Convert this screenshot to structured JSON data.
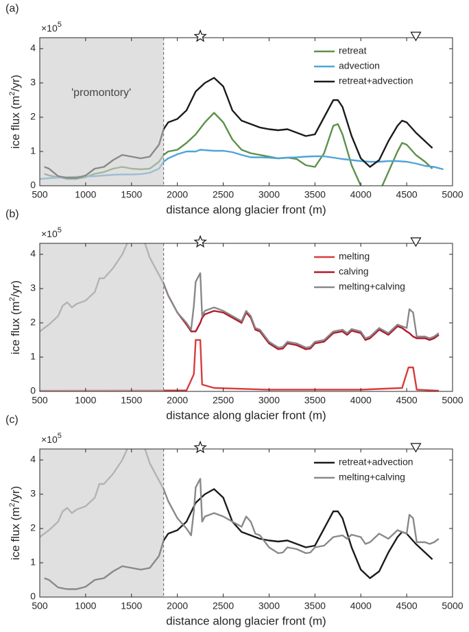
{
  "chart_data": [
    {
      "type": "line",
      "panel_label": "(a)",
      "y_multiplier": "×10",
      "y_exponent": "5",
      "xlabel": "distance along glacier front (m)",
      "ylabel_parts": [
        "ice flux (m",
        "2",
        "/yr)"
      ],
      "xlim": [
        500,
        5000
      ],
      "xticks": [
        500,
        1000,
        1500,
        2000,
        2500,
        3000,
        3500,
        4000,
        4500,
        5000
      ],
      "ylim": [
        0,
        4.32
      ],
      "yticks": [
        0,
        1,
        2,
        3,
        4
      ],
      "legend": "upper right",
      "shade": [
        500,
        1850
      ],
      "markers": [
        {
          "x": 2250,
          "symbol": "star"
        },
        {
          "x": 4600,
          "symbol": "triangle"
        }
      ],
      "annotations": [
        {
          "text": "'promontory'",
          "x": 1170,
          "y": 2.7
        }
      ],
      "series": [
        {
          "name": "retreat",
          "color": "#5b9149",
          "x": [
            550,
            600,
            700,
            800,
            900,
            1000,
            1100,
            1200,
            1300,
            1400,
            1500,
            1600,
            1700,
            1800,
            1850,
            1900,
            2000,
            2100,
            2200,
            2300,
            2400,
            2500,
            2600,
            2700,
            2800,
            2900,
            3000,
            3100,
            3200,
            3300,
            3400,
            3500,
            3600,
            3700,
            3750,
            3800,
            3900,
            4000,
            4100,
            4200,
            4300,
            4400,
            4450,
            4500,
            4600,
            4700,
            4780
          ],
          "values": [
            0.35,
            0.3,
            0.25,
            0.2,
            0.2,
            0.25,
            0.35,
            0.4,
            0.5,
            0.55,
            0.5,
            0.48,
            0.5,
            0.7,
            0.9,
            1.0,
            1.05,
            1.25,
            1.5,
            1.85,
            2.13,
            1.85,
            1.35,
            1.05,
            0.95,
            0.9,
            0.85,
            0.8,
            0.82,
            0.78,
            0.6,
            0.55,
            0.95,
            1.75,
            1.8,
            1.5,
            0.6,
            0.0,
            -0.3,
            -0.2,
            0.4,
            1.0,
            1.25,
            1.2,
            0.9,
            0.7,
            0.5
          ]
        },
        {
          "name": "advection",
          "color": "#4fa3d9",
          "x": [
            500,
            600,
            700,
            800,
            900,
            1000,
            1100,
            1200,
            1300,
            1400,
            1500,
            1600,
            1700,
            1800,
            1850,
            1900,
            2000,
            2100,
            2200,
            2250,
            2300,
            2400,
            2500,
            2600,
            2700,
            2800,
            2900,
            3000,
            3100,
            3200,
            3300,
            3400,
            3500,
            3600,
            3700,
            3800,
            3900,
            4000,
            4100,
            4200,
            4300,
            4400,
            4500,
            4600,
            4700,
            4800,
            4900
          ],
          "values": [
            0.2,
            0.22,
            0.24,
            0.25,
            0.26,
            0.27,
            0.28,
            0.3,
            0.32,
            0.33,
            0.33,
            0.34,
            0.38,
            0.5,
            0.7,
            0.8,
            0.92,
            1.0,
            1.0,
            1.05,
            1.04,
            1.02,
            1.02,
            0.98,
            0.9,
            0.83,
            0.83,
            0.82,
            0.8,
            0.82,
            0.83,
            0.85,
            0.86,
            0.86,
            0.82,
            0.78,
            0.75,
            0.72,
            0.7,
            0.7,
            0.72,
            0.72,
            0.7,
            0.65,
            0.58,
            0.55,
            0.48
          ]
        },
        {
          "name": "retreat+advection",
          "color": "#1a1a1a",
          "x": [
            550,
            600,
            700,
            800,
            900,
            1000,
            1100,
            1200,
            1300,
            1400,
            1500,
            1600,
            1700,
            1800,
            1850,
            1900,
            2000,
            2100,
            2200,
            2300,
            2400,
            2500,
            2600,
            2700,
            2800,
            2900,
            3000,
            3100,
            3200,
            3300,
            3400,
            3500,
            3600,
            3700,
            3750,
            3800,
            3900,
            4000,
            4100,
            4200,
            4300,
            4400,
            4450,
            4500,
            4600,
            4700,
            4780
          ],
          "values": [
            0.55,
            0.5,
            0.28,
            0.23,
            0.23,
            0.3,
            0.5,
            0.55,
            0.75,
            0.9,
            0.85,
            0.8,
            0.85,
            1.2,
            1.65,
            1.85,
            1.95,
            2.2,
            2.75,
            3.0,
            3.15,
            2.9,
            2.2,
            1.9,
            1.8,
            1.7,
            1.65,
            1.62,
            1.65,
            1.55,
            1.45,
            1.5,
            2.0,
            2.5,
            2.5,
            2.3,
            1.45,
            0.8,
            0.55,
            0.75,
            1.3,
            1.75,
            1.9,
            1.85,
            1.55,
            1.3,
            1.1
          ]
        }
      ]
    },
    {
      "type": "line",
      "panel_label": "(b)",
      "y_multiplier": "×10",
      "y_exponent": "5",
      "xlabel": "distance along glacier front (m)",
      "ylabel_parts": [
        "ice flux (m",
        "2",
        "/yr)"
      ],
      "xlim": [
        500,
        5000
      ],
      "xticks": [
        500,
        1000,
        1500,
        2000,
        2500,
        3000,
        3500,
        4000,
        4500,
        5000
      ],
      "ylim": [
        0,
        4.32
      ],
      "yticks": [
        0,
        1,
        2,
        3,
        4
      ],
      "legend": "upper right",
      "shade": [
        500,
        1850
      ],
      "markers": [
        {
          "x": 2250,
          "symbol": "star"
        },
        {
          "x": 4600,
          "symbol": "triangle"
        }
      ],
      "series": [
        {
          "name": "melting",
          "color": "#d93b3b",
          "x": [
            500,
            2100,
            2180,
            2200,
            2250,
            2270,
            2400,
            3000,
            4000,
            4450,
            4520,
            4570,
            4610,
            4850
          ],
          "values": [
            0.02,
            0.03,
            0.5,
            1.5,
            1.5,
            0.2,
            0.1,
            0.05,
            0.05,
            0.1,
            0.7,
            0.7,
            0.05,
            0.02
          ]
        },
        {
          "name": "calving",
          "color": "#b2182b",
          "x": [
            1850,
            1900,
            2000,
            2100,
            2150,
            2200,
            2250,
            2270,
            2300,
            2400,
            2500,
            2600,
            2700,
            2750,
            2800,
            2850,
            2900,
            3000,
            3100,
            3150,
            3200,
            3300,
            3400,
            3450,
            3500,
            3600,
            3700,
            3800,
            3850,
            3900,
            4000,
            4050,
            4100,
            4200,
            4300,
            4400,
            4450,
            4500,
            4530,
            4570,
            4610,
            4700,
            4750,
            4800,
            4850
          ],
          "values": [
            3.15,
            2.8,
            2.3,
            1.95,
            1.75,
            1.75,
            2.0,
            2.15,
            2.25,
            2.35,
            2.3,
            2.15,
            2.0,
            2.3,
            2.15,
            1.8,
            1.75,
            1.4,
            1.23,
            1.25,
            1.4,
            1.35,
            1.23,
            1.25,
            1.4,
            1.45,
            1.7,
            1.75,
            1.65,
            1.77,
            1.7,
            1.5,
            1.55,
            1.8,
            1.65,
            1.9,
            1.85,
            1.75,
            1.7,
            1.6,
            1.55,
            1.55,
            1.5,
            1.55,
            1.65
          ]
        },
        {
          "name": "melting+calving",
          "color": "#888888",
          "x": [
            500,
            600,
            700,
            750,
            800,
            850,
            900,
            1000,
            1100,
            1150,
            1200,
            1300,
            1350,
            1400,
            1450,
            1500,
            1600,
            1650,
            1700,
            1800,
            1850,
            1900,
            2000,
            2100,
            2150,
            2180,
            2200,
            2250,
            2270,
            2300,
            2400,
            2500,
            2600,
            2700,
            2750,
            2800,
            2850,
            2900,
            3000,
            3100,
            3150,
            3200,
            3300,
            3400,
            3450,
            3500,
            3600,
            3700,
            3800,
            3850,
            3900,
            4000,
            4050,
            4100,
            4200,
            4300,
            4400,
            4450,
            4500,
            4530,
            4570,
            4610,
            4700,
            4750,
            4800,
            4850
          ],
          "values": [
            1.75,
            1.95,
            2.2,
            2.5,
            2.6,
            2.45,
            2.55,
            2.65,
            2.9,
            3.3,
            3.3,
            3.6,
            3.8,
            4.0,
            4.3,
            4.5,
            4.5,
            4.3,
            3.9,
            3.4,
            3.15,
            2.8,
            2.3,
            2.0,
            1.8,
            2.5,
            3.2,
            3.45,
            2.2,
            2.35,
            2.45,
            2.35,
            2.2,
            2.05,
            2.35,
            2.2,
            1.85,
            1.8,
            1.45,
            1.28,
            1.3,
            1.45,
            1.4,
            1.28,
            1.3,
            1.45,
            1.5,
            1.75,
            1.8,
            1.7,
            1.82,
            1.75,
            1.55,
            1.6,
            1.85,
            1.7,
            1.95,
            1.9,
            1.85,
            2.4,
            2.3,
            1.6,
            1.6,
            1.55,
            1.6,
            1.7
          ]
        }
      ]
    },
    {
      "type": "line",
      "panel_label": "(c)",
      "y_multiplier": "×10",
      "y_exponent": "5",
      "xlabel": "distance along glacier front (m)",
      "ylabel_parts": [
        "ice flux (m",
        "2",
        "/yr)"
      ],
      "xlim": [
        500,
        5000
      ],
      "xticks": [
        500,
        1000,
        1500,
        2000,
        2500,
        3000,
        3500,
        4000,
        4500,
        5000
      ],
      "ylim": [
        0,
        4.32
      ],
      "yticks": [
        0,
        1,
        2,
        3,
        4
      ],
      "legend": "upper right",
      "shade": [
        500,
        1850
      ],
      "markers": [
        {
          "x": 2250,
          "symbol": "star"
        },
        {
          "x": 4600,
          "symbol": "triangle"
        }
      ],
      "series": [
        {
          "name": "retreat+advection",
          "color": "#1a1a1a",
          "x": [
            550,
            600,
            700,
            800,
            900,
            1000,
            1100,
            1200,
            1300,
            1400,
            1500,
            1600,
            1700,
            1800,
            1850,
            1900,
            2000,
            2100,
            2200,
            2300,
            2400,
            2500,
            2600,
            2700,
            2800,
            2900,
            3000,
            3100,
            3200,
            3300,
            3400,
            3500,
            3600,
            3700,
            3750,
            3800,
            3900,
            4000,
            4100,
            4200,
            4300,
            4400,
            4450,
            4500,
            4600,
            4700,
            4780
          ],
          "values": [
            0.55,
            0.5,
            0.28,
            0.23,
            0.23,
            0.3,
            0.5,
            0.55,
            0.75,
            0.9,
            0.85,
            0.8,
            0.85,
            1.2,
            1.65,
            1.85,
            1.95,
            2.2,
            2.75,
            3.0,
            3.15,
            2.9,
            2.2,
            1.9,
            1.8,
            1.7,
            1.65,
            1.62,
            1.65,
            1.55,
            1.45,
            1.5,
            2.0,
            2.5,
            2.5,
            2.3,
            1.45,
            0.8,
            0.55,
            0.75,
            1.3,
            1.75,
            1.9,
            1.85,
            1.55,
            1.3,
            1.1
          ]
        },
        {
          "name": "melting+calving",
          "color": "#888888",
          "x": [
            500,
            600,
            700,
            750,
            800,
            850,
            900,
            1000,
            1100,
            1150,
            1200,
            1300,
            1350,
            1400,
            1450,
            1500,
            1600,
            1650,
            1700,
            1800,
            1850,
            1900,
            2000,
            2100,
            2150,
            2180,
            2200,
            2250,
            2270,
            2300,
            2400,
            2500,
            2600,
            2700,
            2750,
            2800,
            2850,
            2900,
            3000,
            3100,
            3150,
            3200,
            3300,
            3400,
            3450,
            3500,
            3600,
            3700,
            3800,
            3850,
            3900,
            4000,
            4050,
            4100,
            4200,
            4300,
            4400,
            4450,
            4500,
            4530,
            4570,
            4610,
            4700,
            4750,
            4800,
            4850
          ],
          "values": [
            1.75,
            1.95,
            2.2,
            2.5,
            2.6,
            2.45,
            2.55,
            2.65,
            2.9,
            3.3,
            3.3,
            3.6,
            3.8,
            4.0,
            4.3,
            4.5,
            4.5,
            4.3,
            3.9,
            3.4,
            3.15,
            2.8,
            2.3,
            2.0,
            1.8,
            2.5,
            3.2,
            3.45,
            2.2,
            2.35,
            2.45,
            2.35,
            2.2,
            2.05,
            2.35,
            2.2,
            1.85,
            1.8,
            1.45,
            1.28,
            1.3,
            1.45,
            1.4,
            1.28,
            1.3,
            1.45,
            1.5,
            1.75,
            1.8,
            1.7,
            1.82,
            1.75,
            1.55,
            1.6,
            1.85,
            1.7,
            1.95,
            1.9,
            1.85,
            2.4,
            2.3,
            1.6,
            1.6,
            1.55,
            1.6,
            1.7
          ]
        }
      ]
    }
  ]
}
